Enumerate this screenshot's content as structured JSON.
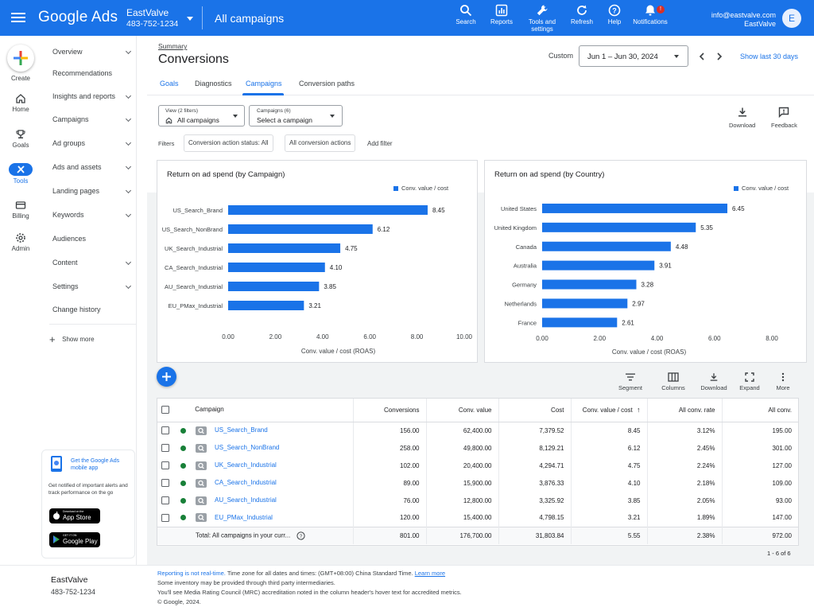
{
  "topbar": {
    "brand": "Google Ads",
    "account_name": "EastValve",
    "account_id": "483-752-1234",
    "section_title": "All campaigns",
    "tools": [
      {
        "label": "Search"
      },
      {
        "label": "Reports"
      },
      {
        "label": "Tools and settings"
      },
      {
        "label": "Refresh"
      },
      {
        "label": "Help"
      },
      {
        "label": "Notifications",
        "badge": "!"
      }
    ],
    "user_email": "info@eastvalve.com",
    "user_account": "EastValve",
    "avatar_letter": "E"
  },
  "rail": {
    "create": "Create",
    "items": [
      "Home",
      "Goals",
      "Tools",
      "Billing",
      "Admin"
    ],
    "active": "Tools"
  },
  "nav": {
    "items": [
      {
        "label": "Overview",
        "chevron": true
      },
      {
        "label": "Recommendations",
        "chevron": false
      },
      {
        "label": "Insights and reports",
        "chevron": true
      },
      {
        "label": "Campaigns",
        "chevron": true
      },
      {
        "label": "Ad groups",
        "chevron": true
      },
      {
        "label": "Ads and assets",
        "chevron": true
      },
      {
        "label": "Landing pages",
        "chevron": true
      },
      {
        "label": "Keywords",
        "chevron": true
      },
      {
        "label": "Audiences",
        "chevron": false
      },
      {
        "label": "Content",
        "chevron": true
      },
      {
        "label": "Settings",
        "chevron": true
      },
      {
        "label": "Change history",
        "chevron": false
      }
    ],
    "show_more": "Show more"
  },
  "promo": {
    "title": "Get the Google Ads mobile app",
    "text": "Get notified of important alerts and track performance on the go",
    "app_store_small": "Download on the",
    "app_store": "App Store",
    "google_play_small": "GET IT ON",
    "google_play": "Google Play"
  },
  "sidebar_footer": {
    "account_name": "EastValve",
    "account_id": "483-752-1234"
  },
  "header": {
    "breadcrumb": "Summary",
    "title": "Conversions",
    "date_label": "Custom",
    "date_range": "Jun 1 – Jun 30, 2024",
    "show_last": "Show last 30 days"
  },
  "tabs": [
    "Goals",
    "Diagnostics",
    "Campaigns",
    "Conversion paths"
  ],
  "active_tab": "Campaigns",
  "toolbar": {
    "view_small": "View (2 filters)",
    "view_value": "All campaigns",
    "campaigns_small": "Campaigns (6)",
    "campaigns_value": "Select a campaign",
    "download": "Download",
    "feedback": "Feedback",
    "filters_label": "Filters",
    "chip1": "Conversion action status: All",
    "chip2": "All conversion actions",
    "add_filter": "Add filter"
  },
  "charts": {
    "legend": "Conv. value / cost",
    "bar_color": "#1a73e8"
  },
  "chart_data": [
    {
      "type": "bar",
      "orientation": "horizontal",
      "title": "Return on ad spend (by Campaign)",
      "categories": [
        "US_Search_Brand",
        "US_Search_NonBrand",
        "UK_Search_Industrial",
        "CA_Search_Industrial",
        "AU_Search_Industrial",
        "EU_PMax_Industrial"
      ],
      "series": [
        {
          "name": "Conv. value / cost",
          "values": [
            8.45,
            6.12,
            4.75,
            4.1,
            3.85,
            3.21
          ]
        }
      ],
      "value_labels": [
        "8.45",
        "6.12",
        "4.75",
        "4.10",
        "3.85",
        "3.21"
      ],
      "xlabel": "Conv. value / cost (ROAS)",
      "xlim": [
        0,
        10
      ],
      "xticks": [
        "0.00",
        "2.00",
        "4.00",
        "6.00",
        "8.00",
        "10.00"
      ],
      "legend": "top-right"
    },
    {
      "type": "bar",
      "orientation": "horizontal",
      "title": "Return on ad spend (by Country)",
      "categories": [
        "United States",
        "United Kingdom",
        "Canada",
        "Australia",
        "Germany",
        "Netherlands",
        "France"
      ],
      "series": [
        {
          "name": "Conv. value / cost",
          "values": [
            6.45,
            5.35,
            4.48,
            3.91,
            3.28,
            2.97,
            2.61
          ]
        }
      ],
      "value_labels": [
        "6.45",
        "5.35",
        "4.48",
        "3.91",
        "3.28",
        "2.97",
        "2.61"
      ],
      "xlabel": "Conv. value / cost (ROAS)",
      "xlim": [
        0,
        8
      ],
      "xticks": [
        "0.00",
        "2.00",
        "4.00",
        "6.00",
        "8.00"
      ],
      "legend": "top-right"
    }
  ],
  "table_tools": [
    "Segment",
    "Columns",
    "Download",
    "Expand",
    "More"
  ],
  "table": {
    "columns": [
      "Campaign",
      "Conversions",
      "Conv. value",
      "Cost",
      "Conv. value / cost",
      "All conv. rate",
      "All conv."
    ],
    "sort_indicator": "↑",
    "rows": [
      {
        "name": "US_Search_Brand",
        "icon": "search-campaign-icon",
        "cells": [
          "156.00",
          "62,400.00",
          "7,379.52",
          "8.45",
          "3.12%",
          "195.00"
        ]
      },
      {
        "name": "US_Search_NonBrand",
        "icon": "search-campaign-icon",
        "cells": [
          "258.00",
          "49,800.00",
          "8,129.21",
          "6.12",
          "2.45%",
          "301.00"
        ]
      },
      {
        "name": "UK_Search_Industrial",
        "icon": "search-campaign-icon",
        "cells": [
          "102.00",
          "20,400.00",
          "4,294.71",
          "4.75",
          "2.24%",
          "127.00"
        ]
      },
      {
        "name": "CA_Search_Industrial",
        "icon": "search-campaign-icon",
        "cells": [
          "89.00",
          "15,900.00",
          "3,876.33",
          "4.10",
          "2.18%",
          "109.00"
        ]
      },
      {
        "name": "AU_Search_Industrial",
        "icon": "search-campaign-icon",
        "cells": [
          "76.00",
          "12,800.00",
          "3,325.92",
          "3.85",
          "2.05%",
          "93.00"
        ]
      },
      {
        "name": "EU_PMax_Industrial",
        "icon": "pmax-campaign-icon",
        "cells": [
          "120.00",
          "15,400.00",
          "4,798.15",
          "3.21",
          "1.89%",
          "147.00"
        ]
      }
    ],
    "total_label": "Total: All campaigns in your curr...",
    "total_cells": [
      "801.00",
      "176,700.00",
      "31,803.84",
      "5.55",
      "2.38%",
      "972.00"
    ],
    "pagination": "1 - 6 of 6"
  },
  "footer": {
    "realtime_link": "Reporting is not real-time.",
    "line1": " Time zone for all dates and times: (GMT+08:00) China Standard Time. ",
    "learn_more": "Learn more",
    "line2": "Some inventory may be provided through third party intermediaries.",
    "line3": "You'll see Media Rating Council (MRC) accreditation noted in the column header's hover text for accredited metrics.",
    "line4": "© Google, 2024."
  }
}
